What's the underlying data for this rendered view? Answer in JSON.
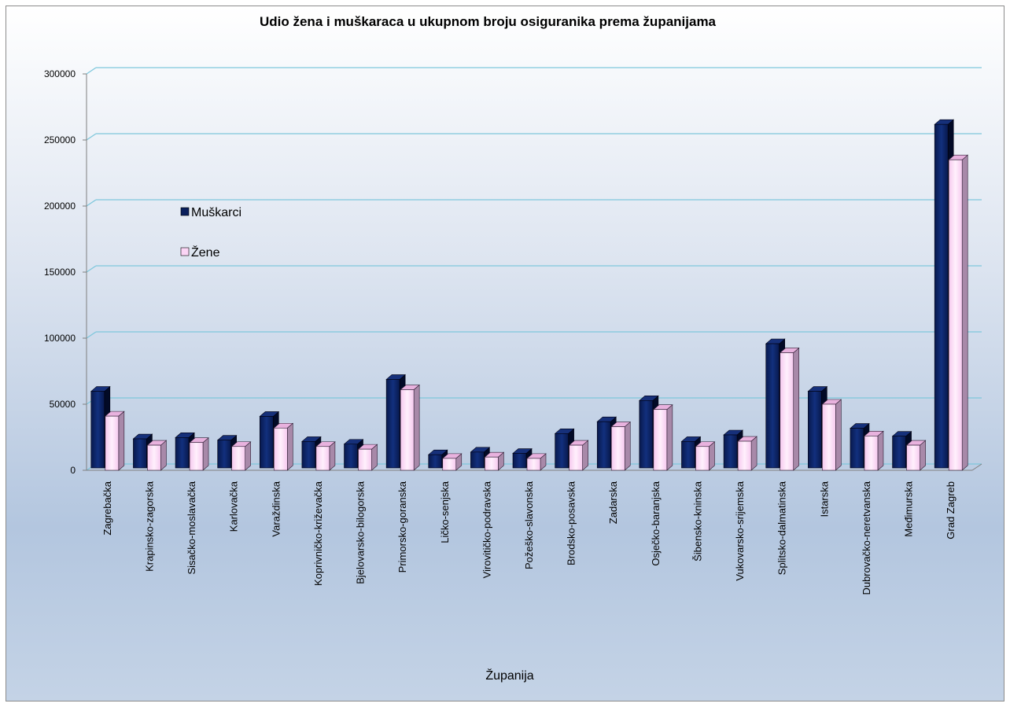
{
  "chart_data": {
    "type": "bar",
    "title": "Udio žena i muškaraca u ukupnom broju osiguranika prema županijama",
    "xlabel": "Županija",
    "ylabel": "",
    "ylim": [
      0,
      300000
    ],
    "yticks": [
      "0",
      "50000",
      "100000",
      "150000",
      "200000",
      "250000",
      "300000"
    ],
    "grid": true,
    "legend_position": "left-inside",
    "categories": [
      "Zagrebačka",
      "Krapinsko-zagorska",
      "Sisačko-moslavačka",
      "Karlovačka",
      "Varaždinska",
      "Koprivničko-križevačka",
      "Bjelovarsko-bilogorska",
      "Primorsko-goranska",
      "Ličko-senjska",
      "Virovitičko-podravska",
      "Požeško-slavonska",
      "Brodsko-posavska",
      "Zadarska",
      "Osječko-baranjska",
      "Šibensko-kninska",
      "Vukovarsko-srijemska",
      "Splitsko-dalmatinska",
      "Istarska",
      "Dubrovačko-neretvanska",
      "Međimurska",
      "Grad Zagreb"
    ],
    "series": [
      {
        "name": "Muškarci",
        "color": "#0a1f5c",
        "values": [
          58000,
          22000,
          23000,
          21000,
          39000,
          20000,
          18000,
          67000,
          10000,
          12000,
          11000,
          26000,
          35000,
          51000,
          20000,
          25000,
          94000,
          58000,
          30000,
          24000,
          260000
        ]
      },
      {
        "name": "Žene",
        "color": "#fbd5f5",
        "values": [
          41000,
          19000,
          21000,
          18000,
          32000,
          18000,
          16000,
          61000,
          9000,
          10000,
          9000,
          19000,
          33000,
          46000,
          18000,
          22000,
          89000,
          50000,
          26000,
          19000,
          235000
        ]
      }
    ]
  }
}
